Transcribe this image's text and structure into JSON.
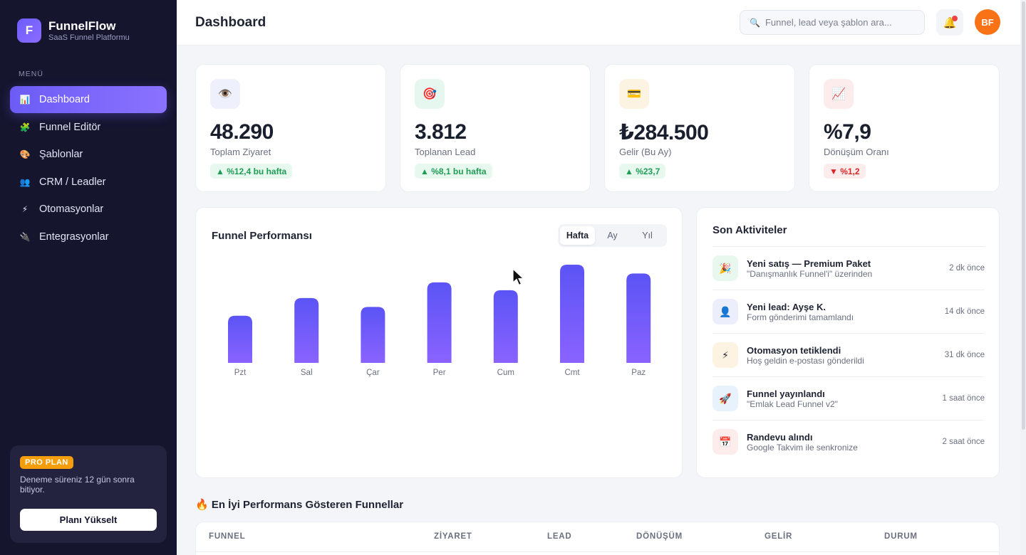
{
  "sidebar": {
    "logo_letter": "F",
    "brand_name": "FunnelFlow",
    "brand_sub": "SaaS Funnel Platformu",
    "menu_heading": "MENÜ",
    "items": [
      {
        "label": "Dashboard",
        "icon": "📊",
        "icon_name": "chart-icon",
        "active": true
      },
      {
        "label": "Funnel Editör",
        "icon": "🧩",
        "icon_name": "puzzle-icon"
      },
      {
        "label": "Şablonlar",
        "icon": "🎨",
        "icon_name": "palette-icon"
      },
      {
        "label": "CRM / Leadler",
        "icon": "👥",
        "icon_name": "users-icon"
      },
      {
        "label": "Otomasyonlar",
        "icon": "⚡",
        "icon_name": "lightning-icon"
      },
      {
        "label": "Entegrasyonlar",
        "icon": "🔌",
        "icon_name": "plug-icon"
      }
    ],
    "pro": {
      "badge": "PRO PLAN",
      "text": "Deneme süreniz 12 gün sonra bitiyor.",
      "button": "Planı Yükselt"
    }
  },
  "header": {
    "title": "Dashboard",
    "search_placeholder": "Funnel, lead veya şablon ara...",
    "avatar_initials": "BF"
  },
  "stats": [
    {
      "icon": "👁️",
      "icon_name": "eye-icon",
      "icon_bg": "#eef0fb",
      "value": "48.290",
      "label": "Toplam Ziyaret",
      "change": "▲ %12,4 bu hafta",
      "trend": "up"
    },
    {
      "icon": "🎯",
      "icon_name": "target-icon",
      "icon_bg": "#e6f7f0",
      "value": "3.812",
      "label": "Toplanan Lead",
      "change": "▲ %8,1 bu hafta",
      "trend": "up"
    },
    {
      "icon": "💳",
      "icon_name": "credit-card-icon",
      "icon_bg": "#fdf3e2",
      "value": "₺284.500",
      "label": "Gelir (Bu Ay)",
      "change": "▲ %23,7",
      "trend": "up"
    },
    {
      "icon": "📈",
      "icon_name": "trend-up-icon",
      "icon_bg": "#fdecec",
      "value": "%7,9",
      "label": "Dönüşüm Oranı",
      "change": "▼ %1,2",
      "trend": "down"
    }
  ],
  "chart": {
    "title": "Funnel Performansı",
    "tabs": [
      "Hafta",
      "Ay",
      "Yıl"
    ],
    "active_tab": "Hafta"
  },
  "chart_data": {
    "type": "bar",
    "categories": [
      "Pzt",
      "Sal",
      "Çar",
      "Per",
      "Cum",
      "Cmt",
      "Paz"
    ],
    "values": [
      48,
      66,
      57,
      82,
      74,
      100,
      91
    ],
    "ylim": [
      0,
      100
    ],
    "grid": false,
    "bar_color_top": "#5b54f5",
    "bar_color_bottom": "#8a63ff"
  },
  "activities": {
    "title": "Son Aktiviteler",
    "items": [
      {
        "icon": "🎉",
        "icon_name": "party-icon",
        "bg": "#e9f8ef",
        "title": "Yeni satış — Premium Paket",
        "sub": "\"Danışmanlık Funnel'i\" üzerinden",
        "time": "2 dk önce"
      },
      {
        "icon": "👤",
        "icon_name": "user-icon",
        "bg": "#eceefb",
        "title": "Yeni lead: Ayşe K.",
        "sub": "Form gönderimi tamamlandı",
        "time": "14 dk önce"
      },
      {
        "icon": "⚡",
        "icon_name": "lightning-icon",
        "bg": "#fdf3e2",
        "title": "Otomasyon tetiklendi",
        "sub": "Hoş geldin e-postası gönderildi",
        "time": "31 dk önce"
      },
      {
        "icon": "🚀",
        "icon_name": "rocket-icon",
        "bg": "#e7f2fd",
        "title": "Funnel yayınlandı",
        "sub": "\"Emlak Lead Funnel v2\"",
        "time": "1 saat önce"
      },
      {
        "icon": "📅",
        "icon_name": "calendar-icon",
        "bg": "#fdecec",
        "title": "Randevu alındı",
        "sub": "Google Takvim ile senkronize",
        "time": "2 saat önce"
      }
    ]
  },
  "top_funnels": {
    "title": "🔥 En İyi Performans Gösteren Funnellar",
    "columns": [
      "FUNNEL",
      "ZİYARET",
      "LEAD",
      "DÖNÜŞÜM",
      "GELİR",
      "DURUM"
    ]
  }
}
